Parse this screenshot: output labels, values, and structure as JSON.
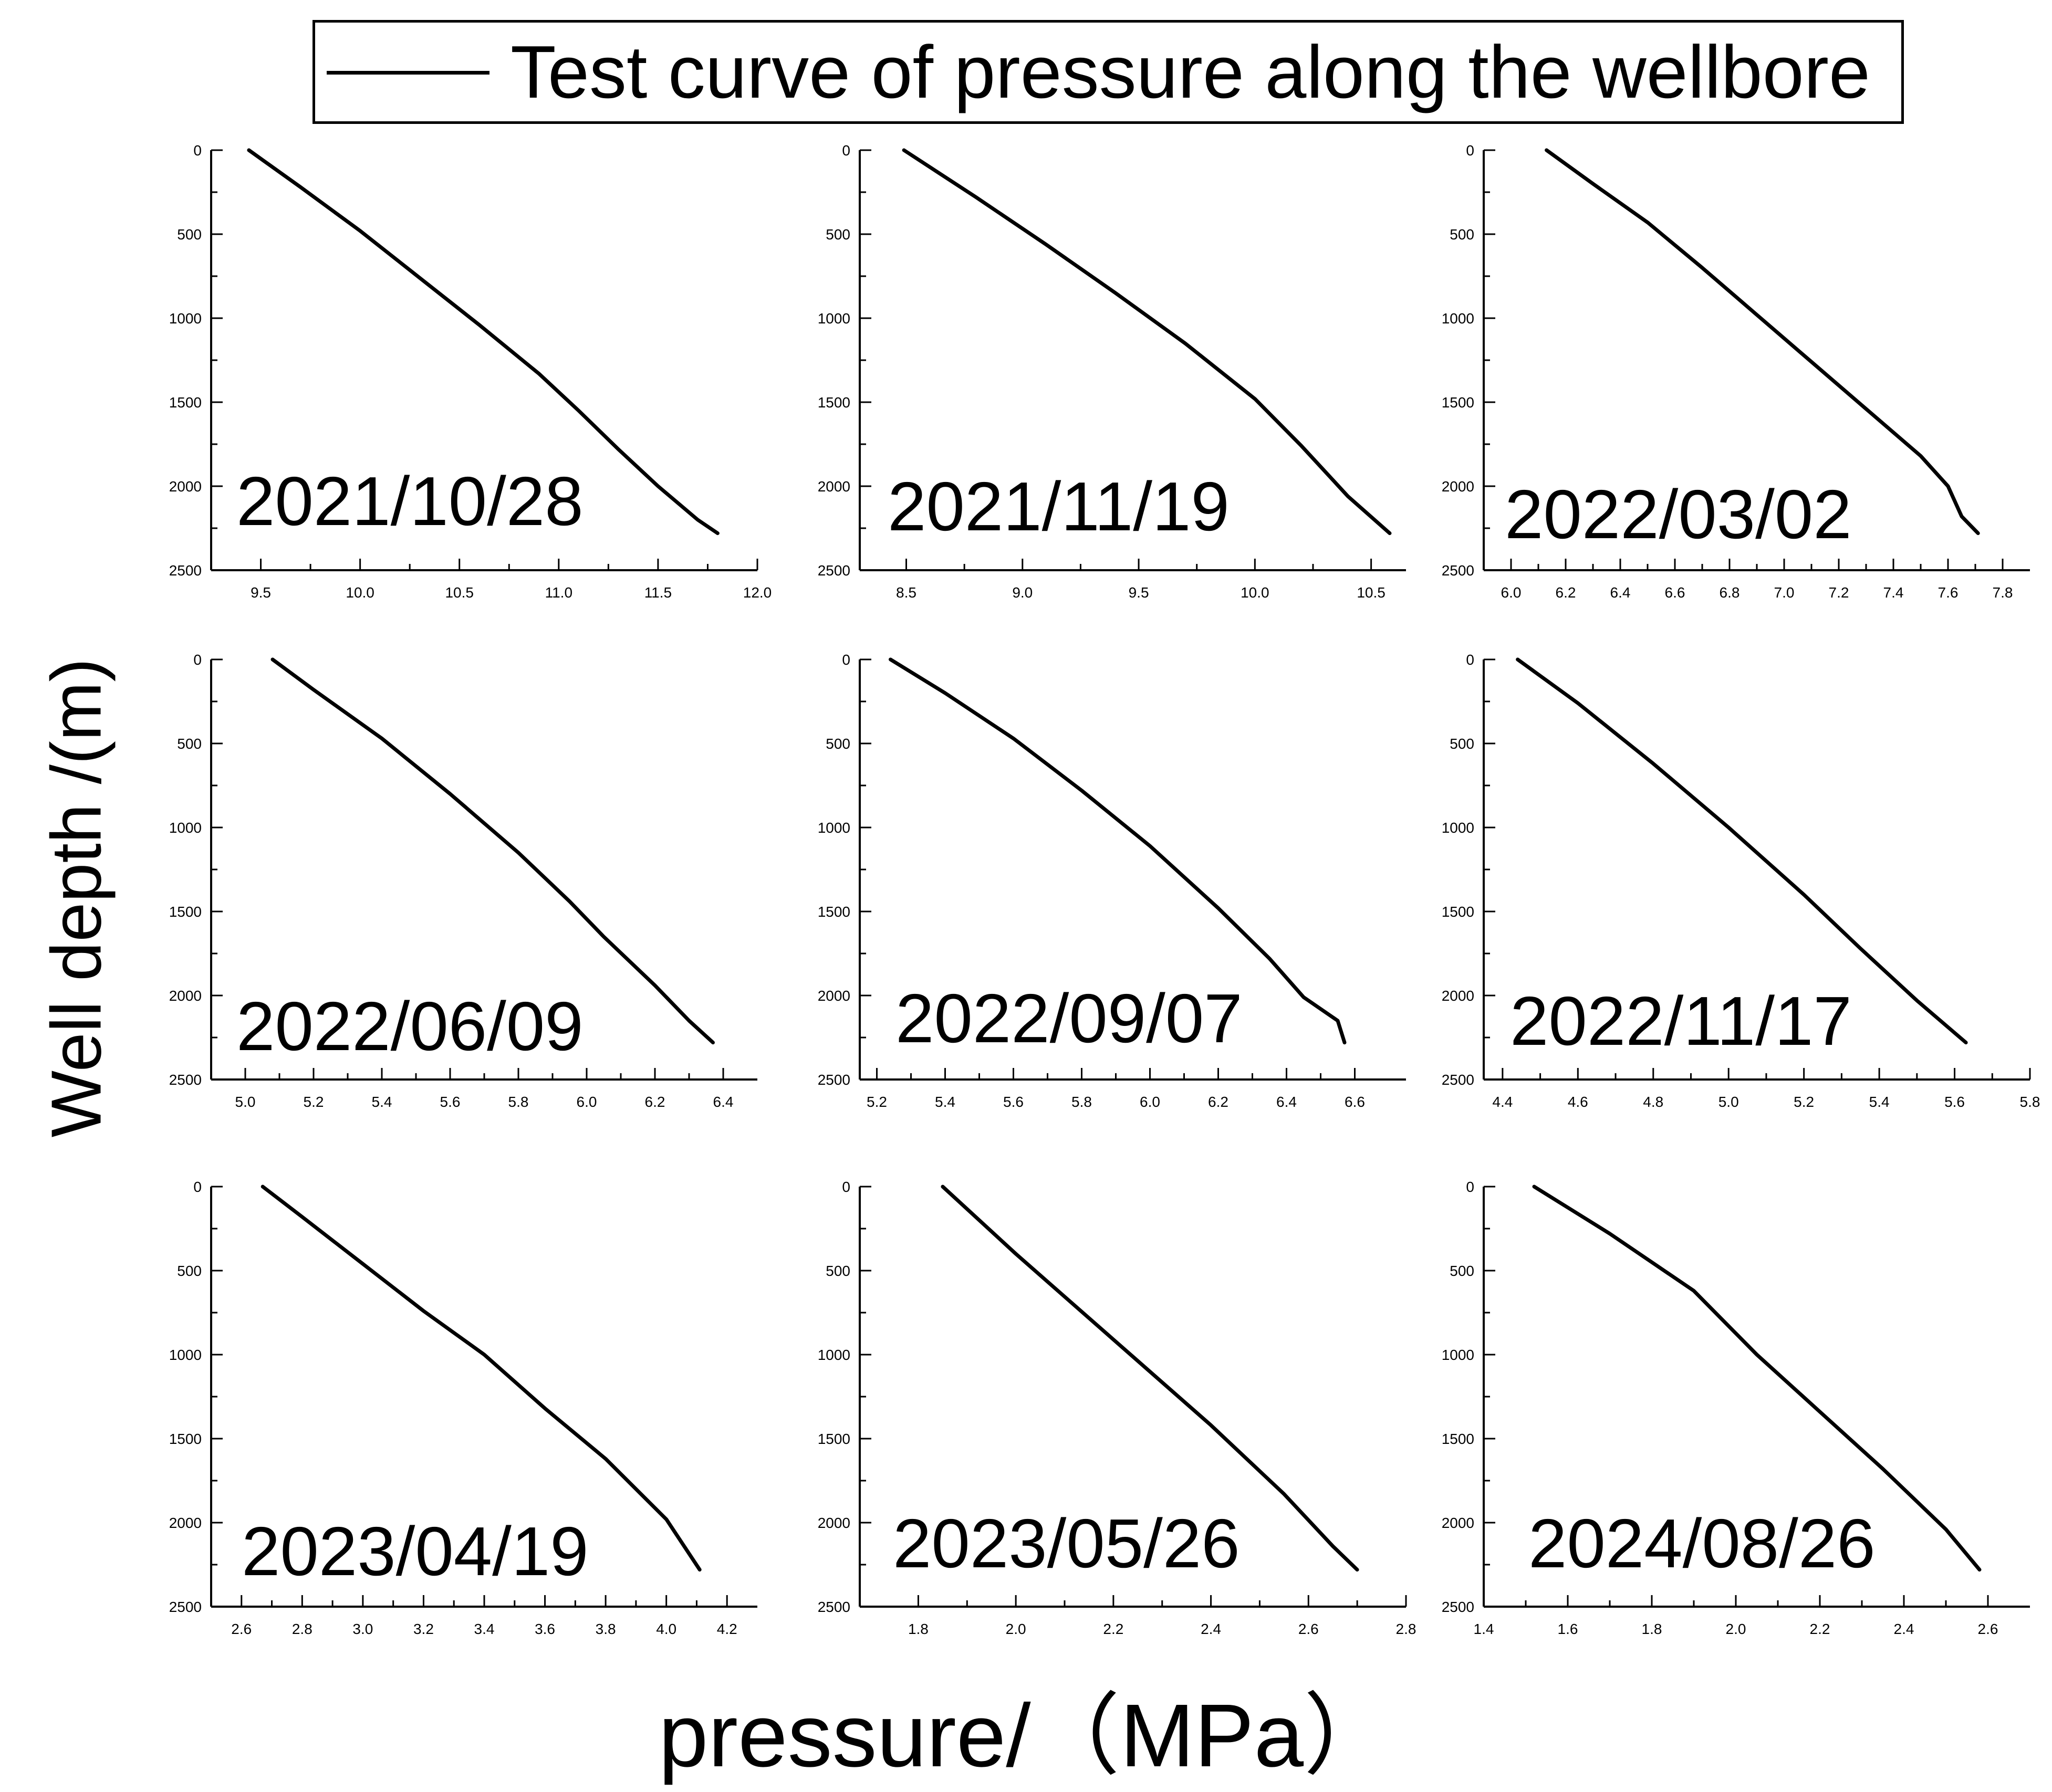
{
  "legend": {
    "label": "Test curve of pressure along the wellbore"
  },
  "ylabel": "Well depth /(m)",
  "xlabel": "pressure/（MPa）",
  "chart_data": [
    {
      "type": "line",
      "title": "2021/10/28",
      "xlim": [
        9.25,
        12.0
      ],
      "ylim": [
        2500,
        0
      ],
      "xticks": [
        "9.5",
        "10.0",
        "10.5",
        "11.0",
        "11.5",
        "12.0"
      ],
      "yticks": [
        "0",
        "500",
        "1000",
        "1500",
        "2000",
        "2500"
      ],
      "x": [
        9.44,
        9.7,
        10.0,
        10.3,
        10.6,
        10.9,
        11.1,
        11.3,
        11.5,
        11.7,
        11.8
      ],
      "y": [
        0,
        220,
        480,
        760,
        1040,
        1330,
        1550,
        1780,
        2000,
        2200,
        2280
      ]
    },
    {
      "type": "line",
      "title": "2021/11/19",
      "xlim": [
        8.3,
        10.65
      ],
      "ylim": [
        2500,
        0
      ],
      "xticks": [
        "8.5",
        "9.0",
        "9.5",
        "10.0",
        "10.5"
      ],
      "yticks": [
        "0",
        "500",
        "1000",
        "1500",
        "2000",
        "2500"
      ],
      "x": [
        8.49,
        8.8,
        9.1,
        9.4,
        9.7,
        10.0,
        10.2,
        10.4,
        10.58
      ],
      "y": [
        0,
        280,
        560,
        850,
        1150,
        1480,
        1760,
        2060,
        2280
      ]
    },
    {
      "type": "line",
      "title": "2022/03/02",
      "xlim": [
        5.9,
        7.9
      ],
      "ylim": [
        2500,
        0
      ],
      "xticks": [
        "6.0",
        "6.2",
        "6.4",
        "6.6",
        "6.8",
        "7.0",
        "7.2",
        "7.4",
        "7.6",
        "7.8"
      ],
      "yticks": [
        "0",
        "500",
        "1000",
        "1500",
        "2000",
        "2500"
      ],
      "x": [
        6.13,
        6.3,
        6.5,
        6.7,
        6.9,
        7.1,
        7.3,
        7.5,
        7.6,
        7.65,
        7.71
      ],
      "y": [
        0,
        200,
        430,
        700,
        980,
        1260,
        1540,
        1820,
        2000,
        2180,
        2280
      ]
    },
    {
      "type": "line",
      "title": "2022/06/09",
      "xlim": [
        4.9,
        6.5
      ],
      "ylim": [
        2500,
        0
      ],
      "xticks": [
        "5.0",
        "5.2",
        "5.4",
        "5.6",
        "5.8",
        "6.0",
        "6.2",
        "6.4"
      ],
      "yticks": [
        "0",
        "500",
        "1000",
        "1500",
        "2000",
        "2500"
      ],
      "x": [
        5.08,
        5.2,
        5.4,
        5.6,
        5.8,
        5.95,
        6.05,
        6.2,
        6.3,
        6.37
      ],
      "y": [
        0,
        180,
        470,
        800,
        1150,
        1440,
        1650,
        1940,
        2150,
        2280
      ]
    },
    {
      "type": "line",
      "title": "2022/09/07",
      "xlim": [
        5.15,
        6.75
      ],
      "ylim": [
        2500,
        0
      ],
      "xticks": [
        "5.2",
        "5.4",
        "5.6",
        "5.8",
        "6.0",
        "6.2",
        "6.4",
        "6.6"
      ],
      "yticks": [
        "0",
        "500",
        "1000",
        "1500",
        "2000",
        "2500"
      ],
      "x": [
        5.24,
        5.4,
        5.6,
        5.8,
        6.0,
        6.2,
        6.35,
        6.45,
        6.55,
        6.57
      ],
      "y": [
        0,
        200,
        470,
        780,
        1110,
        1480,
        1780,
        2010,
        2150,
        2280
      ]
    },
    {
      "type": "line",
      "title": "2022/11/17",
      "xlim": [
        4.35,
        5.8
      ],
      "ylim": [
        2500,
        0
      ],
      "xticks": [
        "4.4",
        "4.6",
        "4.8",
        "5.0",
        "5.2",
        "5.4",
        "5.6",
        "5.8"
      ],
      "yticks": [
        "0",
        "500",
        "1000",
        "1500",
        "2000",
        "2500"
      ],
      "x": [
        4.44,
        4.6,
        4.8,
        5.0,
        5.2,
        5.35,
        5.5,
        5.63
      ],
      "y": [
        0,
        260,
        620,
        1000,
        1400,
        1720,
        2030,
        2280
      ]
    },
    {
      "type": "line",
      "title": "2023/04/19",
      "xlim": [
        2.5,
        4.3
      ],
      "ylim": [
        2500,
        0
      ],
      "xticks": [
        "2.6",
        "2.8",
        "3.0",
        "3.2",
        "3.4",
        "3.6",
        "3.8",
        "4.0",
        "4.2"
      ],
      "yticks": [
        "0",
        "500",
        "1000",
        "1500",
        "2000",
        "2500"
      ],
      "x": [
        2.67,
        2.8,
        3.0,
        3.2,
        3.4,
        3.45,
        3.6,
        3.8,
        4.0,
        4.11
      ],
      "y": [
        0,
        180,
        460,
        740,
        1000,
        1080,
        1320,
        1620,
        1980,
        2280
      ]
    },
    {
      "type": "line",
      "title": "2023/05/26",
      "xlim": [
        1.68,
        2.8
      ],
      "ylim": [
        2500,
        0
      ],
      "xticks": [
        "1.8",
        "2.0",
        "2.2",
        "2.4",
        "2.6",
        "2.8"
      ],
      "yticks": [
        "0",
        "500",
        "1000",
        "1500",
        "2000",
        "2500"
      ],
      "x": [
        1.85,
        2.0,
        2.2,
        2.4,
        2.55,
        2.65,
        2.7
      ],
      "y": [
        0,
        400,
        910,
        1420,
        1830,
        2140,
        2280
      ]
    },
    {
      "type": "line",
      "title": "2024/08/26",
      "xlim": [
        1.4,
        2.7
      ],
      "ylim": [
        2500,
        0
      ],
      "xticks": [
        "1.4",
        "1.6",
        "1.8",
        "2.0",
        "2.2",
        "2.4",
        "2.6"
      ],
      "yticks": [
        "0",
        "500",
        "1000",
        "1500",
        "2000",
        "2500"
      ],
      "x": [
        1.52,
        1.7,
        1.9,
        2.05,
        2.2,
        2.35,
        2.5,
        2.58
      ],
      "y": [
        0,
        280,
        620,
        1000,
        1340,
        1680,
        2040,
        2280
      ]
    }
  ]
}
